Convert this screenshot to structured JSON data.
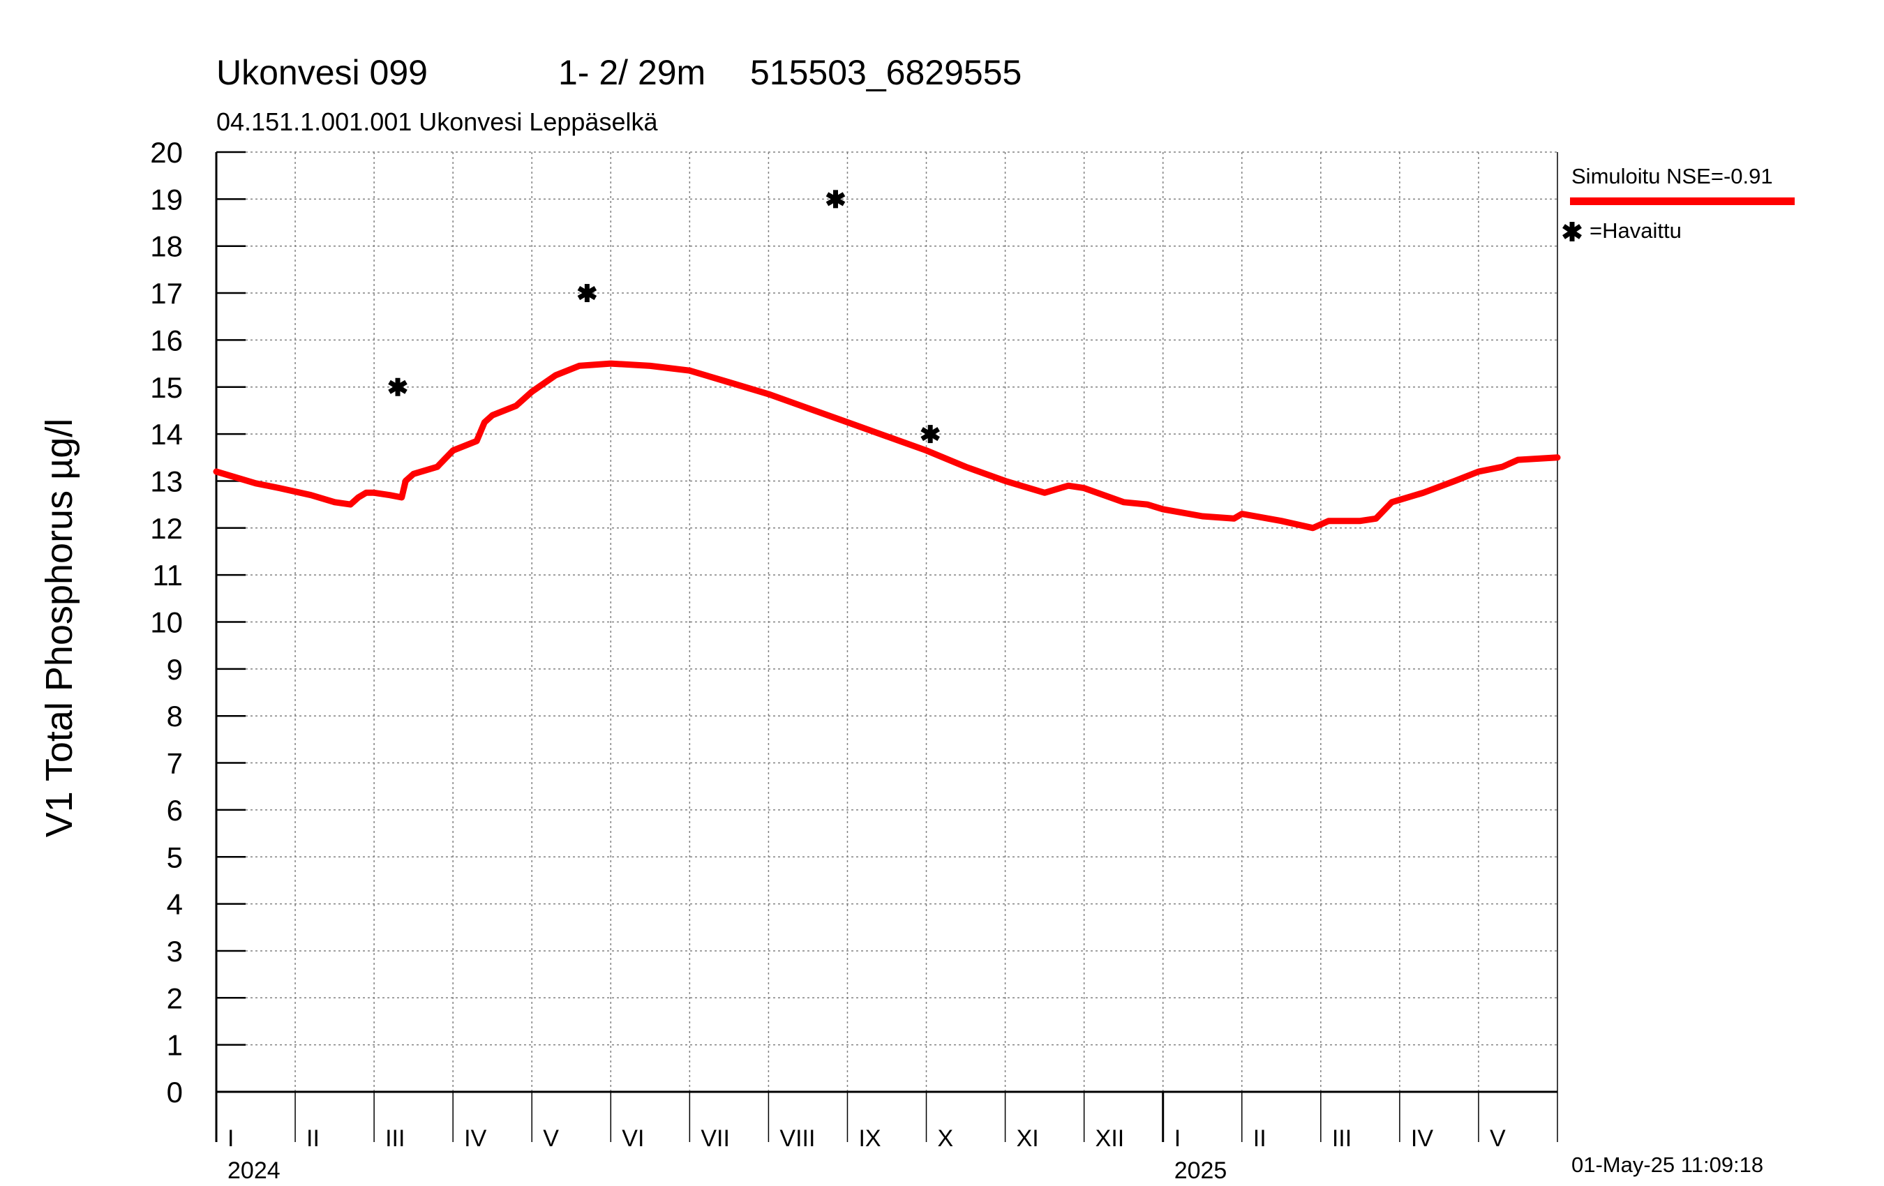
{
  "header": {
    "title": "Ukonvesi 099",
    "depth_info": "1- 2/ 29m",
    "coordinates": "515503_6829555",
    "subtitle": "04.151.1.001.001 Ukonvesi Leppäselkä"
  },
  "legend": {
    "simulated_label": "Simuloitu NSE=-0.91",
    "observed_label": "=Havaittu"
  },
  "timestamp": "01-May-25 11:09:18",
  "colors": {
    "simulated": "#ff0000",
    "observed": "#000000",
    "grid": "#808080"
  },
  "chart_data": {
    "type": "line",
    "ylabel": "V1 Total Phosphorus µg/l",
    "ylim": [
      0,
      20
    ],
    "yticks": [
      "0",
      "1",
      "2",
      "3",
      "4",
      "5",
      "6",
      "7",
      "8",
      "9",
      "10",
      "11",
      "12",
      "13",
      "14",
      "15",
      "16",
      "17",
      "18",
      "19",
      "20"
    ],
    "x_unit": "months since 2024-01-01",
    "xlim": [
      0,
      17
    ],
    "grid": true,
    "months": [
      {
        "label": "I",
        "start": 0
      },
      {
        "label": "II",
        "start": 1
      },
      {
        "label": "III",
        "start": 2
      },
      {
        "label": "IV",
        "start": 3
      },
      {
        "label": "V",
        "start": 4
      },
      {
        "label": "VI",
        "start": 5
      },
      {
        "label": "VII",
        "start": 6
      },
      {
        "label": "VIII",
        "start": 7
      },
      {
        "label": "IX",
        "start": 8
      },
      {
        "label": "X",
        "start": 9
      },
      {
        "label": "XI",
        "start": 10
      },
      {
        "label": "XII",
        "start": 11
      },
      {
        "label": "I",
        "start": 12
      },
      {
        "label": "II",
        "start": 13
      },
      {
        "label": "III",
        "start": 14
      },
      {
        "label": "IV",
        "start": 15
      },
      {
        "label": "V",
        "start": 16
      }
    ],
    "years": [
      {
        "label": "2024",
        "at": 0
      },
      {
        "label": "2025",
        "at": 12
      }
    ],
    "series": [
      {
        "name": "Simuloitu",
        "kind": "line",
        "x": [
          0,
          0.5,
          0.8,
          1.2,
          1.5,
          1.7,
          1.8,
          1.9,
          2.0,
          2.2,
          2.35,
          2.4,
          2.5,
          2.8,
          3.0,
          3.3,
          3.4,
          3.5,
          3.8,
          4.0,
          4.3,
          4.6,
          5.0,
          5.5,
          6.0,
          6.5,
          7.0,
          7.5,
          8.0,
          8.5,
          9.0,
          9.5,
          10.0,
          10.5,
          10.8,
          11.0,
          11.5,
          11.8,
          12.0,
          12.5,
          12.9,
          13.0,
          13.5,
          13.9,
          14.1,
          14.5,
          14.7,
          14.9,
          15.3,
          15.7,
          16.0,
          16.3,
          16.5,
          17.0
        ],
        "y": [
          13.2,
          12.95,
          12.85,
          12.7,
          12.55,
          12.5,
          12.65,
          12.75,
          12.75,
          12.7,
          12.65,
          13.0,
          13.15,
          13.3,
          13.65,
          13.85,
          14.25,
          14.4,
          14.6,
          14.9,
          15.25,
          15.45,
          15.5,
          15.45,
          15.35,
          15.1,
          14.85,
          14.55,
          14.25,
          13.95,
          13.65,
          13.3,
          13.0,
          12.75,
          12.9,
          12.85,
          12.55,
          12.5,
          12.4,
          12.25,
          12.2,
          12.3,
          12.15,
          12.0,
          12.15,
          12.15,
          12.2,
          12.55,
          12.75,
          13.0,
          13.2,
          13.3,
          13.45,
          13.5
        ]
      },
      {
        "name": "Havaittu",
        "kind": "scatter",
        "x": [
          2.3,
          4.7,
          7.85,
          9.05
        ],
        "y": [
          15,
          17,
          19,
          14
        ]
      }
    ]
  }
}
